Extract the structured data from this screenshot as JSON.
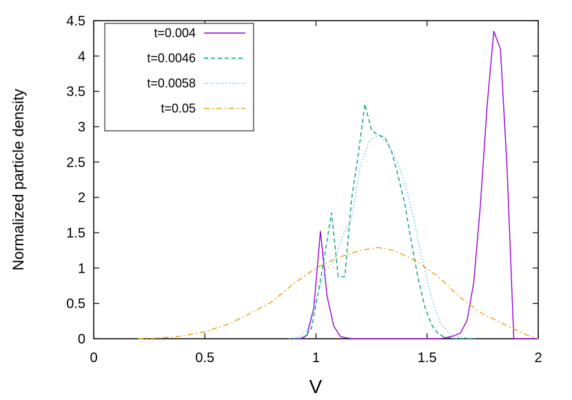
{
  "chart_data": {
    "type": "line",
    "title": "",
    "xlabel": "V",
    "ylabel": "Normalized particle density",
    "xlim": [
      0,
      2
    ],
    "ylim": [
      0,
      4.5
    ],
    "xticks": [
      0,
      0.5,
      1,
      1.5,
      2
    ],
    "xtick_labels": [
      "0",
      "0.5",
      "1",
      "1.5",
      "2"
    ],
    "yticks": [
      0,
      0.5,
      1,
      1.5,
      2,
      2.5,
      3,
      3.5,
      4,
      4.5
    ],
    "ytick_labels": [
      "0",
      "0.5",
      "1",
      "1.5",
      "2",
      "2.5",
      "3",
      "3.5",
      "4",
      "4.5"
    ],
    "grid": false,
    "legend_position": "top-left",
    "series": [
      {
        "name": "t=0.004",
        "color": "#9400d3",
        "dash": "solid",
        "x": [
          0.9,
          0.93,
          0.96,
          0.99,
          1.02,
          1.05,
          1.08,
          1.11,
          1.14,
          1.17,
          1.2,
          1.23,
          1.56,
          1.59,
          1.62,
          1.65,
          1.68,
          1.71,
          1.74,
          1.77,
          1.8,
          1.83,
          1.86,
          1.89,
          1.92,
          1.95,
          1.98,
          2.0
        ],
        "y": [
          0,
          0,
          0.05,
          0.43,
          1.52,
          0.6,
          0.18,
          0.03,
          0.01,
          0,
          0,
          0,
          0,
          0.02,
          0.04,
          0.08,
          0.26,
          0.8,
          1.9,
          3.3,
          4.35,
          4.1,
          2.4,
          0,
          0,
          0,
          0,
          0
        ]
      },
      {
        "name": "t=0.0046",
        "color": "#009e73",
        "dash": "dashed",
        "x": [
          0.9,
          0.95,
          0.98,
          1.01,
          1.04,
          1.07,
          1.1,
          1.13,
          1.16,
          1.19,
          1.22,
          1.25,
          1.28,
          1.31,
          1.34,
          1.37,
          1.4,
          1.43,
          1.46,
          1.49,
          1.52,
          1.55,
          1.58,
          1.61,
          1.64,
          1.67,
          1.7
        ],
        "y": [
          0,
          0.02,
          0.15,
          0.65,
          1.2,
          1.78,
          0.88,
          0.88,
          1.97,
          2.6,
          3.32,
          2.95,
          2.88,
          2.85,
          2.65,
          2.3,
          1.9,
          1.35,
          0.85,
          0.45,
          0.2,
          0.07,
          0.02,
          0.01,
          0,
          0,
          0
        ]
      },
      {
        "name": "t=0.0058",
        "color": "#56b4e9",
        "dash": "dotted",
        "x": [
          0.88,
          0.92,
          0.96,
          1.0,
          1.04,
          1.08,
          1.12,
          1.16,
          1.2,
          1.24,
          1.28,
          1.32,
          1.36,
          1.4,
          1.44,
          1.48,
          1.52,
          1.56,
          1.6,
          1.64,
          1.68,
          1.72
        ],
        "y": [
          0,
          0.02,
          0.12,
          0.55,
          0.95,
          1.1,
          1.45,
          1.7,
          2.45,
          2.8,
          2.88,
          2.78,
          2.55,
          2.2,
          1.7,
          1.1,
          0.58,
          0.22,
          0.08,
          0.03,
          0.01,
          0
        ]
      },
      {
        "name": "t=0.05",
        "color": "#e69f00",
        "dash": "dashdot",
        "x": [
          0.2,
          0.3,
          0.4,
          0.5,
          0.6,
          0.7,
          0.8,
          0.9,
          1.0,
          1.1,
          1.2,
          1.28,
          1.35,
          1.45,
          1.55,
          1.65,
          1.75,
          1.85,
          1.95,
          2.0
        ],
        "y": [
          0,
          0.01,
          0.04,
          0.1,
          0.2,
          0.35,
          0.52,
          0.78,
          1.0,
          1.15,
          1.25,
          1.29,
          1.25,
          1.1,
          0.88,
          0.58,
          0.35,
          0.2,
          0.05,
          0
        ]
      }
    ]
  }
}
